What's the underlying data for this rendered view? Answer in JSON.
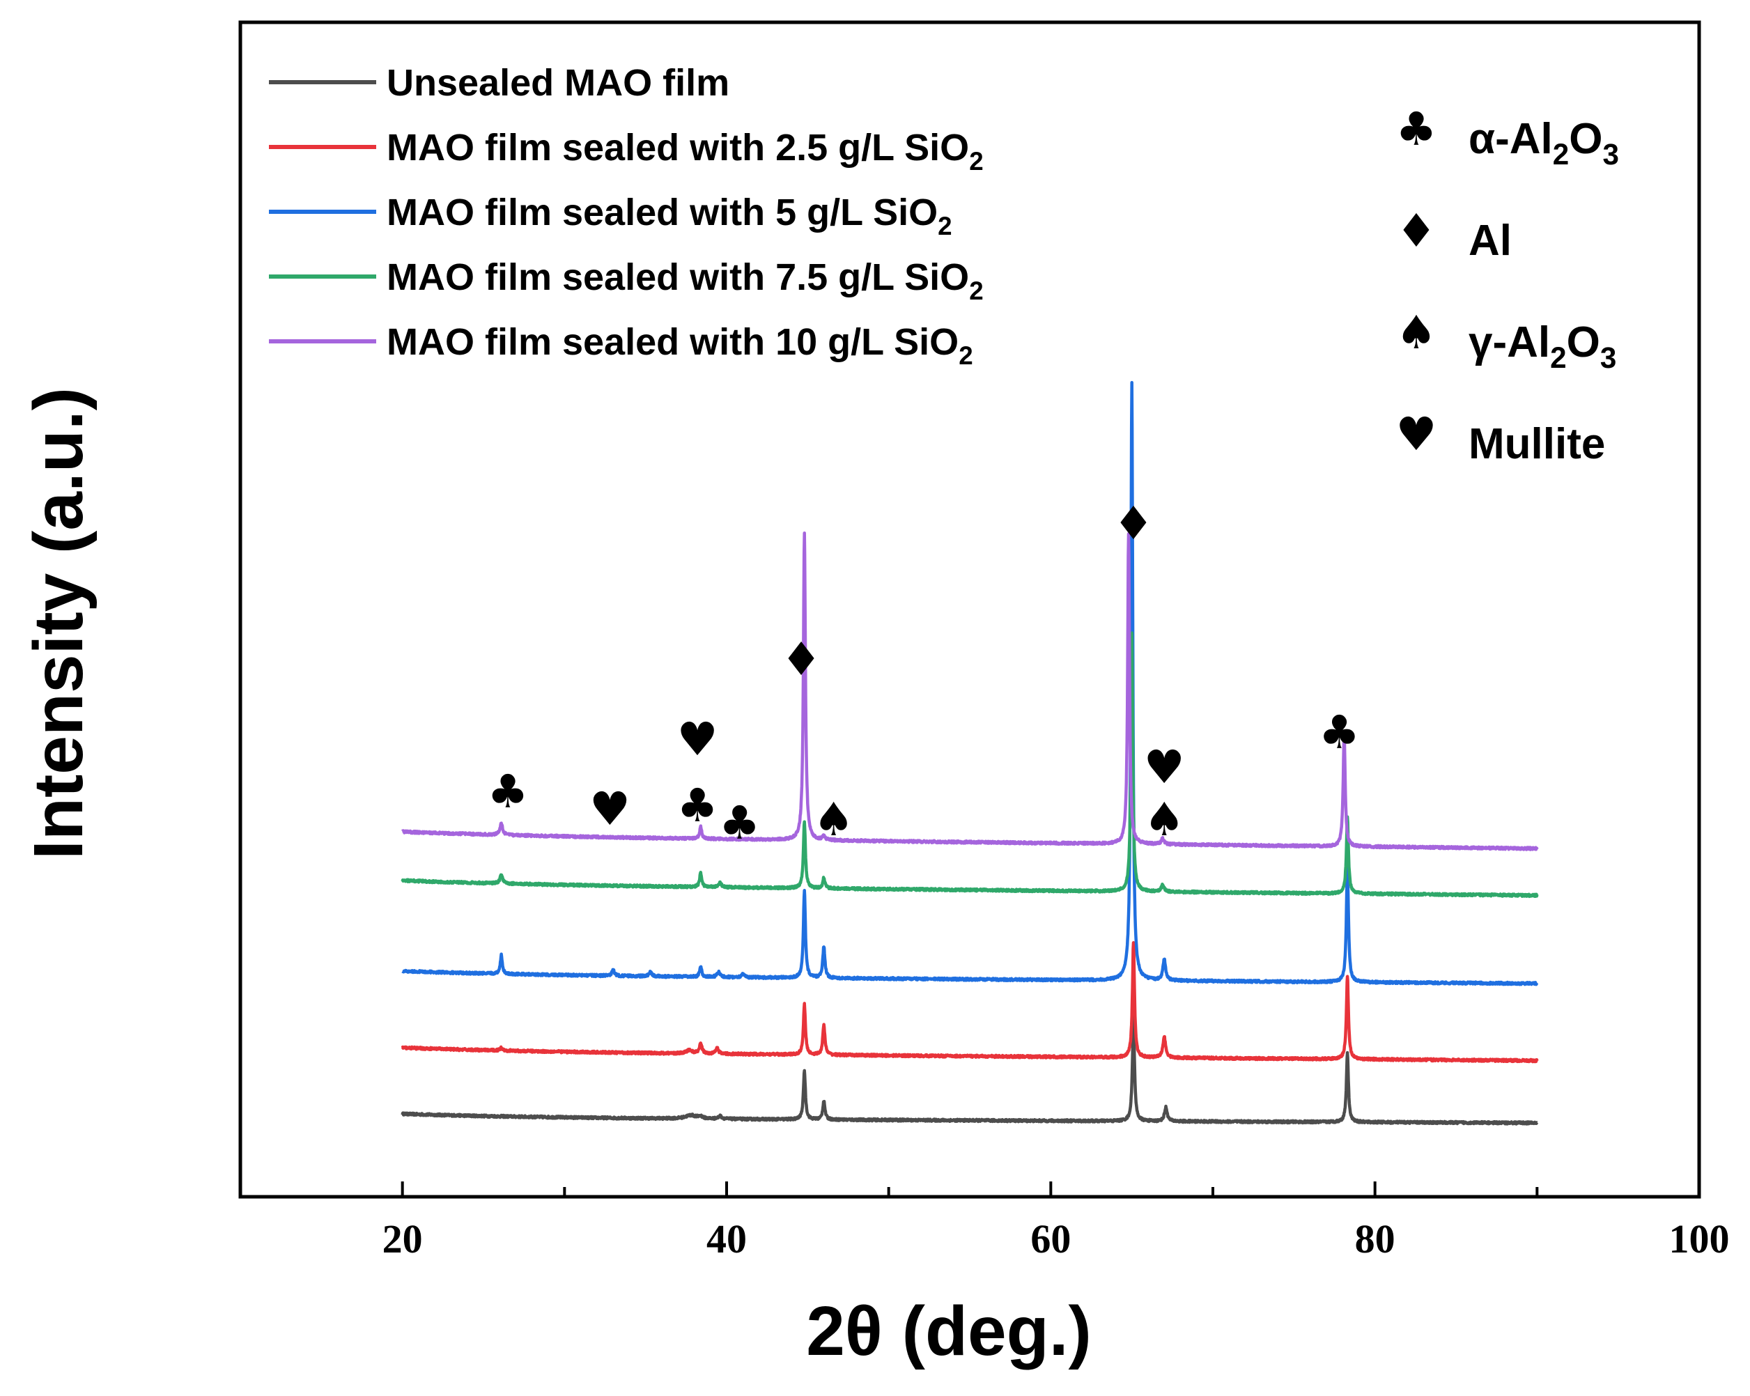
{
  "chart_data": {
    "type": "line",
    "xlabel": "2θ (deg.)",
    "ylabel": "Intensity (a.u.)",
    "xlim": [
      10,
      100
    ],
    "xticks": [
      "20",
      "40",
      "60",
      "80",
      "100"
    ],
    "yticks": [],
    "grid": false,
    "legend_position": "top-left",
    "series": [
      {
        "name": "Unsealed MAO film",
        "name_sub": "",
        "color": "#4d4d4d",
        "offset": 0,
        "slope": -0.1,
        "peaks": [
          [
            37.8,
            5,
            0.8
          ],
          [
            38.4,
            3,
            0.3
          ],
          [
            39.6,
            4,
            0.25
          ],
          [
            44.8,
            70,
            0.15
          ],
          [
            46.0,
            27,
            0.16
          ],
          [
            65.1,
            150,
            0.15
          ],
          [
            67.1,
            20,
            0.2
          ],
          [
            78.3,
            100,
            0.15
          ]
        ]
      },
      {
        "name": "MAO film sealed with 2.5 g/L SiO",
        "name_sub": "2",
        "color": "#e8333a",
        "offset": 95,
        "slope": -0.18,
        "peaks": [
          [
            26.1,
            4,
            0.2
          ],
          [
            37.7,
            5,
            0.4
          ],
          [
            38.4,
            14,
            0.2
          ],
          [
            39.4,
            9,
            0.2
          ],
          [
            44.8,
            72,
            0.15
          ],
          [
            46.0,
            43,
            0.16
          ],
          [
            65.1,
            165,
            0.15
          ],
          [
            67.0,
            30,
            0.2
          ],
          [
            78.3,
            120,
            0.15
          ]
        ]
      },
      {
        "name": "MAO film sealed with 5 g/L SiO",
        "name_sub": "2",
        "color": "#1f6fe0",
        "offset": 205,
        "slope": -0.17,
        "peaks": [
          [
            26.1,
            27,
            0.15
          ],
          [
            33.0,
            8,
            0.2
          ],
          [
            35.3,
            6,
            0.2
          ],
          [
            38.4,
            15,
            0.15
          ],
          [
            39.5,
            8,
            0.2
          ],
          [
            41.0,
            5,
            0.2
          ],
          [
            44.8,
            125,
            0.15
          ],
          [
            46.0,
            45,
            0.16
          ],
          [
            65.0,
            860,
            0.14
          ],
          [
            67.0,
            30,
            0.2
          ],
          [
            78.3,
            170,
            0.15
          ]
        ]
      },
      {
        "name": "MAO film sealed with 7.5 g/L SiO",
        "name_sub": "2",
        "color": "#2fa86a",
        "offset": 335,
        "slope": -0.22,
        "peaks": [
          [
            26.1,
            12,
            0.2
          ],
          [
            38.4,
            21,
            0.15
          ],
          [
            39.6,
            6,
            0.2
          ],
          [
            44.8,
            95,
            0.15
          ],
          [
            46.0,
            15,
            0.16
          ],
          [
            65.0,
            370,
            0.14
          ],
          [
            66.9,
            10,
            0.2
          ],
          [
            78.3,
            110,
            0.15
          ]
        ]
      },
      {
        "name": "MAO film sealed with 10 g/L SiO",
        "name_sub": "2",
        "color": "#a565dd",
        "offset": 405,
        "slope": -0.26,
        "peaks": [
          [
            26.1,
            16,
            0.2
          ],
          [
            38.4,
            18,
            0.15
          ],
          [
            44.8,
            440,
            0.15
          ],
          [
            46.0,
            6,
            0.16
          ],
          [
            64.8,
            445,
            0.14
          ],
          [
            66.9,
            8,
            0.2
          ],
          [
            78.1,
            160,
            0.15
          ]
        ]
      }
    ],
    "phase_legend": [
      {
        "marker": "♣",
        "label": "α-Al",
        "sub1": "2",
        "mid": "O",
        "sub2": "3"
      },
      {
        "marker": "♦",
        "label": "Al",
        "sub1": "",
        "mid": "",
        "sub2": ""
      },
      {
        "marker": "♠",
        "label": "γ-Al",
        "sub1": "2",
        "mid": "O",
        "sub2": "3"
      },
      {
        "marker": "♥",
        "label": "Mullite",
        "sub1": "",
        "mid": "",
        "sub2": ""
      }
    ],
    "peak_markers": [
      {
        "symbol": "♣",
        "x": 26.5,
        "y": 470
      },
      {
        "symbol": "♥",
        "x": 32.8,
        "y": 445
      },
      {
        "symbol": "♥",
        "x": 38.2,
        "y": 545
      },
      {
        "symbol": "♣",
        "x": 38.2,
        "y": 450
      },
      {
        "symbol": "♣",
        "x": 40.8,
        "y": 425
      },
      {
        "symbol": "♠",
        "x": 46.6,
        "y": 430
      },
      {
        "symbol": "♦",
        "x": 44.6,
        "y": 660
      },
      {
        "symbol": "♦",
        "x": 65.1,
        "y": 855
      },
      {
        "symbol": "♥",
        "x": 67.0,
        "y": 505
      },
      {
        "symbol": "♠",
        "x": 67.0,
        "y": 430
      },
      {
        "symbol": "♣",
        "x": 77.8,
        "y": 555
      }
    ]
  }
}
